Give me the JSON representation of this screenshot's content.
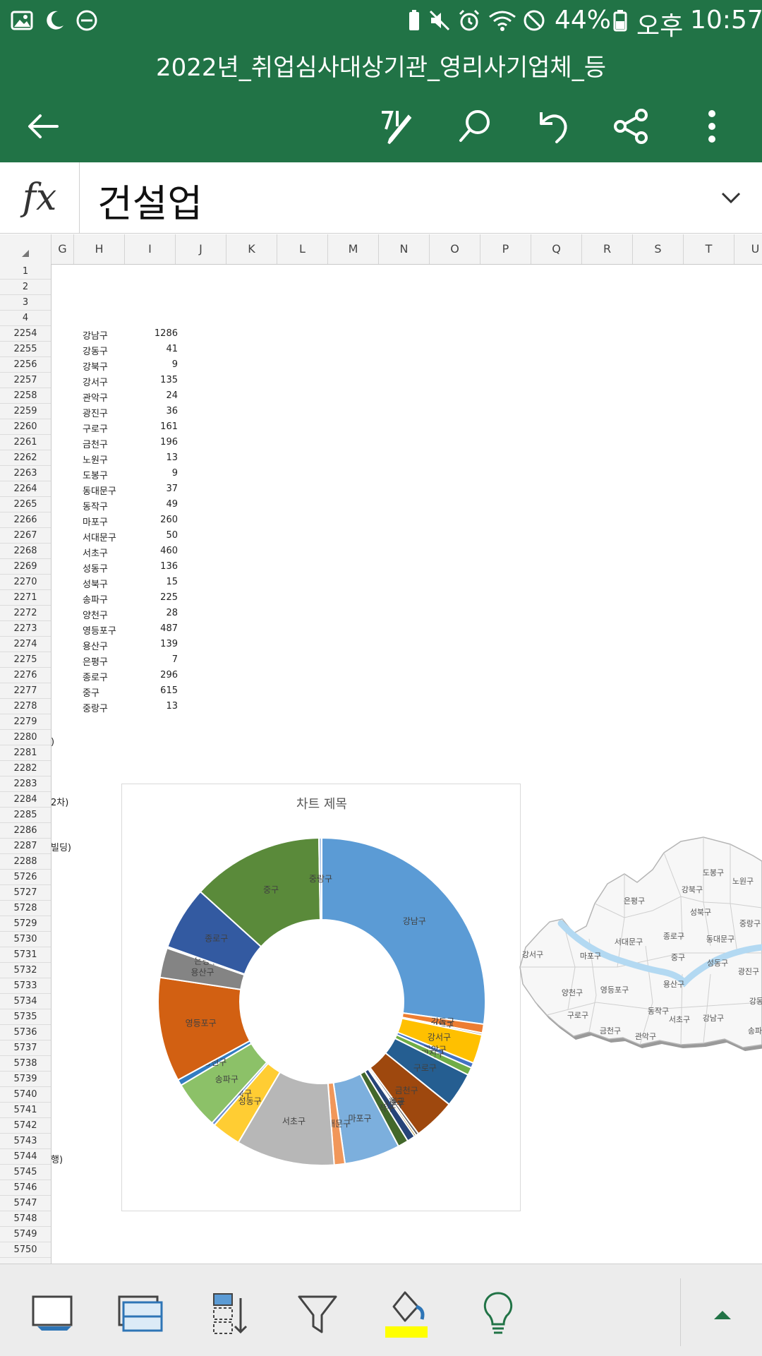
{
  "status_bar": {
    "battery_percent": "44%",
    "ampm": "오후",
    "time": "10:57"
  },
  "title_bar": {
    "document_title": "2022년_취업심사대상기관_영리사기업체_등"
  },
  "formula_bar": {
    "fx_label": "fx",
    "content": "건설업"
  },
  "column_headers": [
    "G",
    "H",
    "I",
    "J",
    "K",
    "L",
    "M",
    "N",
    "O",
    "P",
    "Q",
    "R",
    "S",
    "T",
    "U"
  ],
  "row_headers": [
    "1",
    "2",
    "3",
    "4",
    "2254",
    "2255",
    "2256",
    "2257",
    "2258",
    "2259",
    "2260",
    "2261",
    "2262",
    "2263",
    "2264",
    "2265",
    "2266",
    "2267",
    "2268",
    "2269",
    "2270",
    "2271",
    "2272",
    "2273",
    "2274",
    "2275",
    "2276",
    "2277",
    "2278",
    "2279",
    "2280",
    "2281",
    "2282",
    "2283",
    "2284",
    "2285",
    "2286",
    "2287",
    "2288",
    "5726",
    "5727",
    "5728",
    "5729",
    "5730",
    "5731",
    "5732",
    "5733",
    "5734",
    "5735",
    "5736",
    "5737",
    "5738",
    "5739",
    "5740",
    "5741",
    "5742",
    "5743",
    "5744",
    "5745",
    "5746",
    "5747",
    "5748",
    "5749",
    "5750"
  ],
  "table": {
    "rows": [
      {
        "district": "강남구",
        "count": "1286"
      },
      {
        "district": "강동구",
        "count": "41"
      },
      {
        "district": "강북구",
        "count": "9"
      },
      {
        "district": "강서구",
        "count": "135"
      },
      {
        "district": "관악구",
        "count": "24"
      },
      {
        "district": "광진구",
        "count": "36"
      },
      {
        "district": "구로구",
        "count": "161"
      },
      {
        "district": "금천구",
        "count": "196"
      },
      {
        "district": "노원구",
        "count": "13"
      },
      {
        "district": "도봉구",
        "count": "9"
      },
      {
        "district": "동대문구",
        "count": "37"
      },
      {
        "district": "동작구",
        "count": "49"
      },
      {
        "district": "마포구",
        "count": "260"
      },
      {
        "district": "서대문구",
        "count": "50"
      },
      {
        "district": "서초구",
        "count": "460"
      },
      {
        "district": "성동구",
        "count": "136"
      },
      {
        "district": "성북구",
        "count": "15"
      },
      {
        "district": "송파구",
        "count": "225"
      },
      {
        "district": "양천구",
        "count": "28"
      },
      {
        "district": "영등포구",
        "count": "487"
      },
      {
        "district": "용산구",
        "count": "139"
      },
      {
        "district": "은평구",
        "count": "7"
      },
      {
        "district": "종로구",
        "count": "296"
      },
      {
        "district": "중구",
        "count": "615"
      },
      {
        "district": "중랑구",
        "count": "13"
      }
    ]
  },
  "clipped_cells": [
    ")",
    "2차)",
    "빌딩)",
    "행)"
  ],
  "chart_data": {
    "type": "pie",
    "title": "차트 제목",
    "donut": true,
    "categories": [
      "강남구",
      "강동구",
      "강북구",
      "강서구",
      "관악구",
      "광진구",
      "구로구",
      "금천구",
      "노원구",
      "도봉구",
      "동대문구",
      "동작구",
      "마포구",
      "서대문구",
      "서초구",
      "성동구",
      "성북구",
      "송파구",
      "양천구",
      "영등포구",
      "용산구",
      "은평구",
      "종로구",
      "중구",
      "중랑구"
    ],
    "values": [
      1286,
      41,
      9,
      135,
      24,
      36,
      161,
      196,
      13,
      9,
      37,
      49,
      260,
      50,
      460,
      136,
      15,
      225,
      28,
      487,
      139,
      7,
      296,
      615,
      13
    ],
    "colors": [
      "#5b9bd5",
      "#ed7d31",
      "#a5a5a5",
      "#ffc000",
      "#4472c4",
      "#70ad47",
      "#255e91",
      "#9e480e",
      "#636363",
      "#997300",
      "#264478",
      "#43682b",
      "#7cafdd",
      "#f1975a",
      "#b7b7b7",
      "#ffcd33",
      "#698ed0",
      "#8cc168",
      "#327dc2",
      "#d26012",
      "#848484",
      "#4a77d2",
      "#335aa1",
      "#5a8a3a",
      "#aec7e8"
    ]
  },
  "map": {
    "labels": [
      "도봉구",
      "노원구",
      "강북구",
      "은평구",
      "성북구",
      "중랑구",
      "종로구",
      "동대문구",
      "서대문구",
      "마포구",
      "중구",
      "성동구",
      "광진구",
      "강서구",
      "양천구",
      "영등포구",
      "용산구",
      "동작구",
      "강동구",
      "구로구",
      "금천구",
      "관악구",
      "서초구",
      "강남구",
      "송파구"
    ]
  },
  "colors": {
    "header_green": "#217346",
    "highlight_yellow": "#ffff00",
    "river_blue": "#b3d9f2"
  }
}
